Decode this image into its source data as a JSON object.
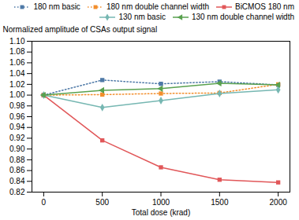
{
  "chart_data": {
    "type": "line",
    "xlabel": "Total dose (krad)",
    "ylabel": "Normalized amplitude of CSAs output signal",
    "x": [
      0,
      500,
      1000,
      1500,
      2000
    ],
    "series": [
      {
        "name": "180 nm basic",
        "values": [
          1.0,
          1.028,
          1.021,
          1.025,
          1.019
        ],
        "marker": "square",
        "line_style": "dotted"
      },
      {
        "name": "180 nm double channel width",
        "values": [
          1.0,
          1.001,
          1.003,
          1.004,
          1.02
        ],
        "marker": "square",
        "line_style": "dotted"
      },
      {
        "name": "BiCMOS 180 nm",
        "values": [
          1.0,
          0.916,
          0.866,
          0.843,
          0.838
        ],
        "marker": "square",
        "line_style": "solid"
      },
      {
        "name": "130 nm basic",
        "values": [
          1.0,
          0.977,
          0.99,
          1.003,
          1.01
        ],
        "marker": "diamond",
        "line_style": "solid"
      },
      {
        "name": "130 nm double channel width",
        "values": [
          1.0,
          1.009,
          1.012,
          1.022,
          1.019
        ],
        "marker": "triangle-left",
        "line_style": "solid"
      }
    ],
    "xlim": [
      -100,
      2100
    ],
    "xticks": [
      0,
      500,
      1000,
      1500,
      2000
    ],
    "ylim": [
      0.82,
      1.1
    ],
    "yticks": [
      0.82,
      0.84,
      0.86,
      0.88,
      {
        "value": 0.9,
        "label": "0.90"
      },
      0.92,
      0.94,
      0.96,
      0.98,
      {
        "value": 1.0,
        "label": "1.00"
      },
      1.02,
      1.04,
      1.06,
      1.08,
      {
        "value": 1.1,
        "label": "1.10"
      }
    ],
    "grid": false,
    "legend": "upper right"
  }
}
